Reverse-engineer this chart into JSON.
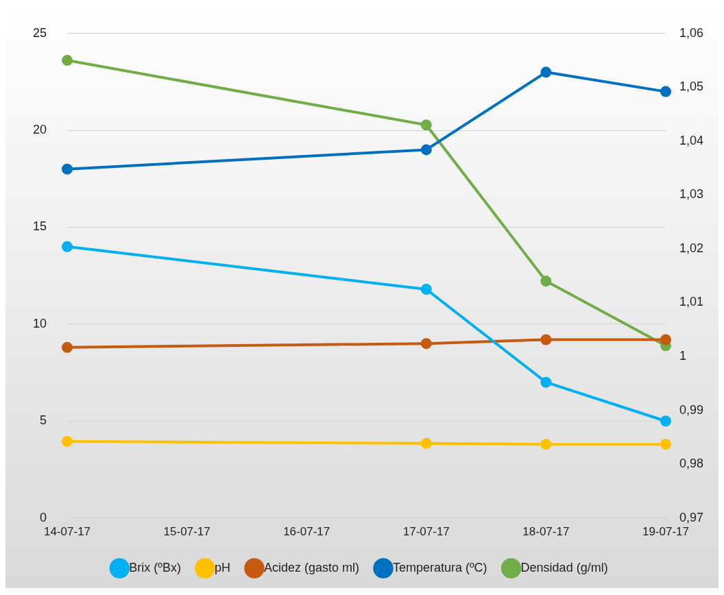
{
  "chart_data": {
    "type": "line",
    "categories": [
      "14-07-17",
      "15-07-17",
      "16-07-17",
      "17-07-17",
      "18-07-17",
      "19-07-17"
    ],
    "series": [
      {
        "name": "Brix (ºBx)",
        "color": "#00b0f0",
        "values": [
          14,
          null,
          null,
          11.8,
          7,
          5
        ]
      },
      {
        "name": "pH",
        "color": "#ffc000",
        "values": [
          3.95,
          null,
          null,
          3.85,
          3.8,
          3.8
        ]
      },
      {
        "name": "Acidez (gasto ml)",
        "color": "#c55a11",
        "values": [
          8.8,
          null,
          null,
          9.0,
          9.2,
          9.2
        ]
      },
      {
        "name": "Temperatura (ºC)",
        "color": "#0070c0",
        "values": [
          18,
          null,
          null,
          19,
          23,
          22
        ]
      },
      {
        "name": "Densidad (g/ml)",
        "color": "#70ad47",
        "axis": "y2",
        "values": [
          1.055,
          null,
          null,
          1.043,
          1.014,
          1.002
        ]
      }
    ],
    "ylim": [
      0,
      25
    ],
    "yticks": [
      0,
      5,
      10,
      15,
      20,
      25
    ],
    "y2lim": [
      0.97,
      1.06
    ],
    "y2ticks": [
      {
        "value": 0.97,
        "label": "0,97"
      },
      {
        "value": 0.98,
        "label": "0,98"
      },
      {
        "value": 0.99,
        "label": "0,99"
      },
      {
        "value": 1,
        "label": "1"
      },
      {
        "value": 1.01,
        "label": "1,01"
      },
      {
        "value": 1.02,
        "label": "1,02"
      },
      {
        "value": 1.03,
        "label": "1,03"
      },
      {
        "value": 1.04,
        "label": "1,04"
      },
      {
        "value": 1.05,
        "label": "1,05"
      },
      {
        "value": 1.06,
        "label": "1,06"
      }
    ],
    "grid": "y",
    "legend": "bottom",
    "marker": "circle",
    "line_style": "solid"
  }
}
